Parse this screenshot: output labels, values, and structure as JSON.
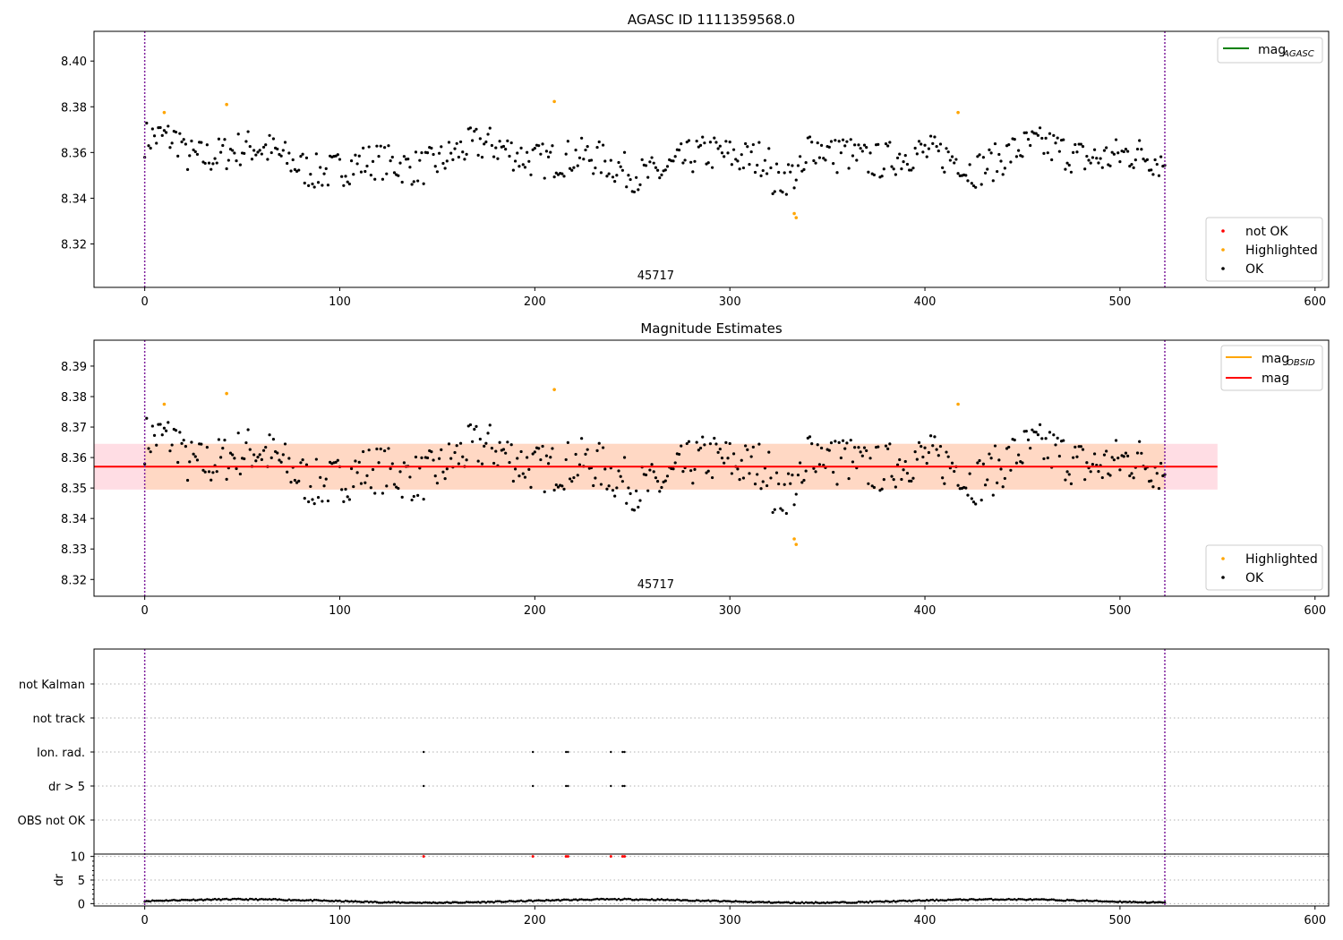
{
  "chart_data": [
    {
      "type": "scatter",
      "title": "AGASC ID 1111359568.0",
      "annotation": "45717",
      "xlim": [
        -26,
        607
      ],
      "ylim": [
        8.301,
        8.413
      ],
      "xticks": [
        0,
        100,
        200,
        300,
        400,
        500,
        600
      ],
      "yticks": [
        8.32,
        8.34,
        8.36,
        8.38,
        8.4
      ],
      "ytick_format": 2,
      "vlines": [
        0,
        523
      ],
      "colors": {
        "ok": "#000000",
        "highlighted": "#ffa500",
        "not_ok": "#ff0000",
        "agasc_line": "#008000",
        "vline": "#7e1e9c"
      },
      "legend_top": {
        "placement": "upper right",
        "label_main": "mag",
        "label_sub": "AGASC"
      },
      "legend_bottom": {
        "placement": "lower right",
        "entries": [
          "not OK",
          "Highlighted",
          "OK"
        ]
      },
      "highlighted": [
        [
          10,
          8.3775
        ],
        [
          42,
          8.381
        ],
        [
          210,
          8.3823
        ],
        [
          417,
          8.3775
        ],
        [
          333,
          8.3333
        ],
        [
          334,
          8.3315
        ]
      ]
    },
    {
      "type": "scatter",
      "title": "Magnitude Estimates",
      "annotation": "45717",
      "xlim": [
        -26,
        607
      ],
      "ylim": [
        8.3145,
        8.3985
      ],
      "xticks": [
        0,
        100,
        200,
        300,
        400,
        500,
        600
      ],
      "yticks": [
        8.32,
        8.33,
        8.34,
        8.35,
        8.36,
        8.37,
        8.38,
        8.39
      ],
      "ytick_format": 2,
      "vlines": [
        0,
        523
      ],
      "mag": 8.357,
      "band_obsid": [
        8.3495,
        8.3645
      ],
      "band_mag": [
        8.3495,
        8.3645
      ],
      "band_x": [
        -26,
        550
      ],
      "colors": {
        "ok": "#000000",
        "highlighted": "#ffa500",
        "mag_line": "#ff0000",
        "obsid_line": "#ffa500",
        "band_mag": "#ffdde4",
        "band_obsid": "#ffd8c4",
        "vline": "#7e1e9c"
      },
      "legend_top": {
        "placement": "upper right",
        "label_obsid_main": "mag",
        "label_obsid_sub": "OBSID",
        "label_mag": "mag"
      },
      "legend_bottom": {
        "placement": "lower right",
        "entries": [
          "Highlighted",
          "OK"
        ]
      },
      "highlighted": [
        [
          10,
          8.3775
        ],
        [
          42,
          8.381
        ],
        [
          210,
          8.3823
        ],
        [
          417,
          8.3775
        ],
        [
          333,
          8.3333
        ],
        [
          334,
          8.3315
        ]
      ]
    },
    {
      "type": "scatter",
      "xlim": [
        -26,
        607
      ],
      "xticks": [
        0,
        100,
        200,
        300,
        400,
        500,
        600
      ],
      "vlines": [
        0,
        523
      ],
      "flag_rows": [
        "not Kalman",
        "not track",
        "Ion. rad.",
        "dr > 5",
        "OBS not OK"
      ],
      "flag_points": {
        "Ion. rad.": [
          143,
          199,
          216,
          217,
          239,
          245,
          246
        ],
        "dr > 5": [
          143,
          199,
          216,
          217,
          239,
          245,
          246
        ]
      },
      "dr_ylabel": "dr",
      "dr_ylim": [
        -0.5,
        10.5
      ],
      "dr_yticks": [
        0,
        5,
        10
      ],
      "dr_large": [
        143,
        199,
        216,
        217,
        239,
        245,
        246
      ],
      "dr_large_value": 10,
      "colors": {
        "points": "#000000",
        "dr_large": "#ff0000",
        "vline": "#7e1e9c"
      }
    }
  ]
}
